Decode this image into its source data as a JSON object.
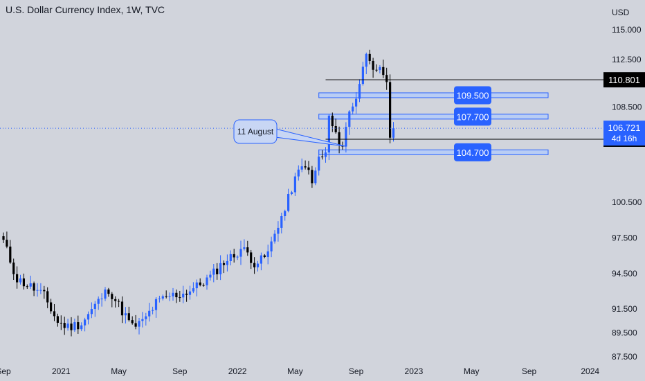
{
  "header": {
    "title": "U.S. Dollar Currency Index, 1W, TVC"
  },
  "colors": {
    "background": "#d1d4dc",
    "up": "#2962ff",
    "down": "#000000",
    "zone": "#b9cdf4",
    "zone_border": "#2962ff",
    "label_bg": "#2962ff"
  },
  "chart_data": {
    "type": "candlestick",
    "title": "U.S. Dollar Currency Index, 1W, TVC",
    "currency": "USD",
    "y_range": [
      86.5,
      116
    ],
    "y_ticks": [
      "115.000",
      "112.500",
      "108.500",
      "100.500",
      "97.500",
      "94.500",
      "91.500",
      "89.500",
      "87.500"
    ],
    "y_tick_values": [
      115.0,
      112.5,
      108.5,
      100.5,
      97.5,
      94.5,
      91.5,
      89.5,
      87.5
    ],
    "x_ticks": [
      "Sep",
      "2021",
      "May",
      "Sep",
      "2022",
      "May",
      "Sep",
      "2023",
      "May",
      "Sep",
      "2024"
    ],
    "x_tick_index": [
      0,
      17,
      34,
      52,
      69,
      86,
      104,
      121,
      138,
      155,
      173
    ],
    "path": [
      [
        0,
        97.2
      ],
      [
        4,
        94.0
      ],
      [
        8,
        93.4
      ],
      [
        12,
        92.6
      ],
      [
        16,
        90.4
      ],
      [
        19,
        90.0
      ],
      [
        23,
        90.3
      ],
      [
        27,
        91.8
      ],
      [
        31,
        93.2
      ],
      [
        34,
        91.8
      ],
      [
        38,
        90.0
      ],
      [
        41,
        90.4
      ],
      [
        45,
        92.0
      ],
      [
        49,
        92.6
      ],
      [
        53,
        92.8
      ],
      [
        57,
        93.4
      ],
      [
        61,
        94.2
      ],
      [
        65,
        95.5
      ],
      [
        68,
        96.0
      ],
      [
        70,
        96.6
      ],
      [
        72,
        96.2
      ],
      [
        74,
        95.4
      ],
      [
        76,
        95.6
      ],
      [
        78,
        96.2
      ],
      [
        81,
        98.7
      ],
      [
        83,
        99.8
      ],
      [
        85,
        101.7
      ],
      [
        87,
        103.0
      ],
      [
        89,
        103.8
      ],
      [
        91,
        102.0
      ],
      [
        93,
        104.2
      ],
      [
        95,
        104.5
      ],
      [
        96,
        107.7
      ],
      [
        98,
        106.0
      ],
      [
        100,
        105.3
      ],
      [
        102,
        108.1
      ],
      [
        104,
        109.4
      ],
      [
        106,
        111.7
      ],
      [
        107,
        113.2
      ],
      [
        108,
        112.8
      ],
      [
        110,
        111.2
      ],
      [
        111,
        111.5
      ],
      [
        113,
        110.3
      ],
      [
        114,
        106.0
      ],
      [
        115,
        106.72
      ]
    ],
    "levels": [
      {
        "label": "110.801",
        "value": 110.801,
        "style": "line"
      },
      {
        "label": "109.500",
        "value": 109.5,
        "style": "zone"
      },
      {
        "label": "107.700",
        "value": 107.7,
        "style": "zone"
      },
      {
        "label": "104.700",
        "value": 104.7,
        "style": "zone"
      },
      {
        "label": "105.800",
        "value": 105.8,
        "style": "line"
      }
    ],
    "current_price": {
      "value": 106.721,
      "label": "106.721",
      "countdown": "4d 16h"
    },
    "annotation": {
      "text": "11 August",
      "index": 101
    }
  }
}
